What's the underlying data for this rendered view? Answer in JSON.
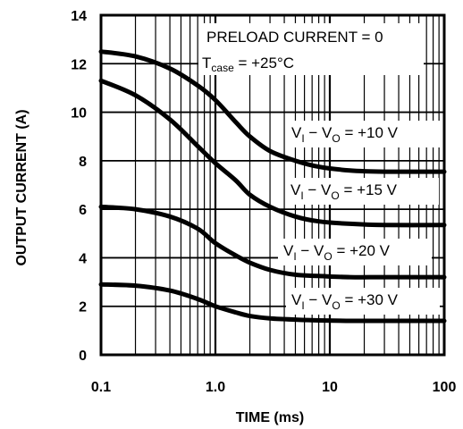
{
  "chart_data": {
    "type": "line",
    "title": "",
    "xlabel": "TIME (ms)",
    "ylabel": "OUTPUT CURRENT (A)",
    "xscale": "log",
    "xlim": [
      0.1,
      100
    ],
    "ylim": [
      0,
      14
    ],
    "xticks": [
      "0.1",
      "1.0",
      "10",
      "100"
    ],
    "yticks": [
      "0",
      "2",
      "4",
      "6",
      "8",
      "10",
      "12",
      "14"
    ],
    "grid": true,
    "annotations": {
      "condition1": "PRELOAD CURRENT = 0",
      "condition2": {
        "prefix": "T",
        "sub": "case",
        "suffix": " = +25°C"
      }
    },
    "series": [
      {
        "label": {
          "v": "V",
          "s1": "I",
          "mid": " − V",
          "s2": "O",
          "val": " = +10 V"
        },
        "x": [
          0.1,
          0.2,
          0.4,
          0.7,
          1.0,
          1.5,
          2,
          3,
          5,
          8,
          15,
          30,
          100
        ],
        "y": [
          12.5,
          12.3,
          11.8,
          11.1,
          10.5,
          9.6,
          9.0,
          8.4,
          8.0,
          7.75,
          7.6,
          7.55,
          7.55
        ]
      },
      {
        "label": {
          "v": "V",
          "s1": "I",
          "mid": " − V",
          "s2": "O",
          "val": " = +15 V"
        },
        "x": [
          0.1,
          0.2,
          0.4,
          0.7,
          1.0,
          1.5,
          2,
          3,
          5,
          8,
          15,
          30,
          100
        ],
        "y": [
          11.3,
          10.7,
          9.7,
          8.6,
          7.9,
          7.2,
          6.6,
          6.1,
          5.7,
          5.5,
          5.4,
          5.35,
          5.35
        ]
      },
      {
        "label": {
          "v": "V",
          "s1": "I",
          "mid": " − V",
          "s2": "O",
          "val": " = +20 V"
        },
        "x": [
          0.1,
          0.2,
          0.4,
          0.7,
          1.0,
          1.5,
          2,
          3,
          5,
          8,
          15,
          30,
          100
        ],
        "y": [
          6.1,
          6.0,
          5.7,
          5.2,
          4.6,
          4.1,
          3.8,
          3.5,
          3.3,
          3.25,
          3.2,
          3.2,
          3.2
        ]
      },
      {
        "label": {
          "v": "V",
          "s1": "I",
          "mid": " − V",
          "s2": "O",
          "val": " = +30 V"
        },
        "x": [
          0.1,
          0.2,
          0.4,
          0.7,
          1.0,
          1.5,
          2,
          3,
          5,
          8,
          15,
          30,
          100
        ],
        "y": [
          2.9,
          2.85,
          2.65,
          2.3,
          2.0,
          1.75,
          1.6,
          1.5,
          1.45,
          1.42,
          1.4,
          1.4,
          1.4
        ]
      }
    ]
  }
}
